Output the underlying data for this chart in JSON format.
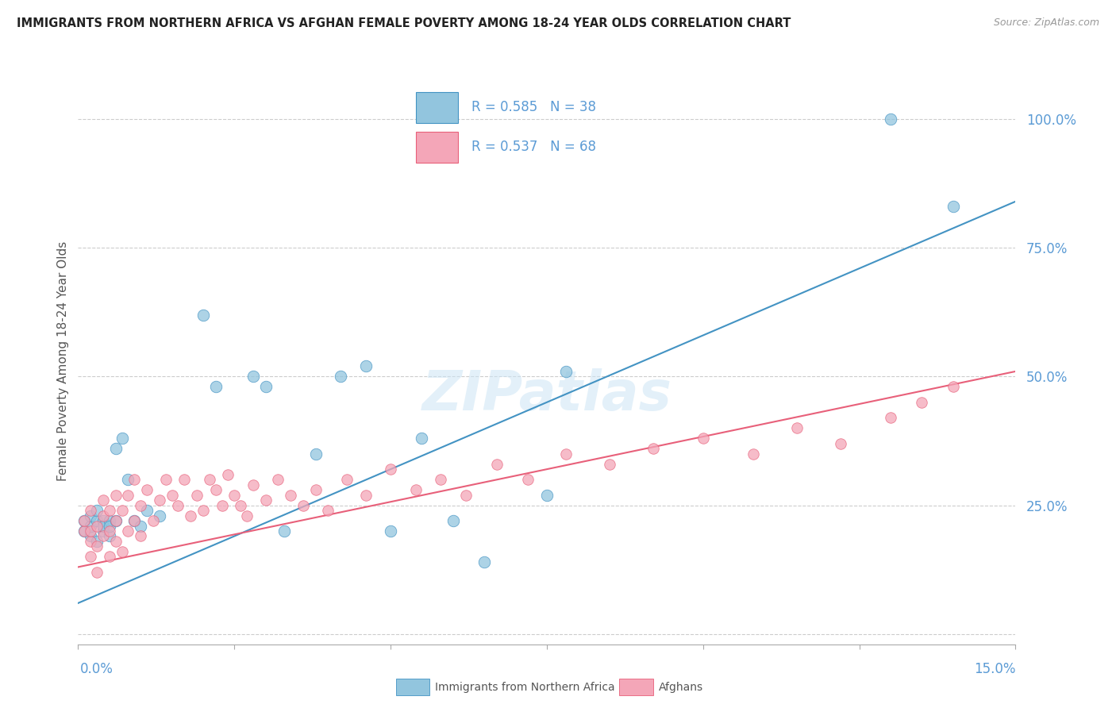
{
  "title": "IMMIGRANTS FROM NORTHERN AFRICA VS AFGHAN FEMALE POVERTY AMONG 18-24 YEAR OLDS CORRELATION CHART",
  "source": "Source: ZipAtlas.com",
  "ylabel": "Female Poverty Among 18-24 Year Olds",
  "xlim": [
    0.0,
    0.15
  ],
  "ylim": [
    -0.02,
    1.08
  ],
  "blue_R": 0.585,
  "blue_N": 38,
  "pink_R": 0.537,
  "pink_N": 68,
  "blue_color": "#92c5de",
  "pink_color": "#f4a6b8",
  "blue_line_color": "#4393c3",
  "pink_line_color": "#e8607a",
  "text_color": "#5b9bd5",
  "watermark": "ZIPatlas",
  "blue_scatter_x": [
    0.001,
    0.001,
    0.002,
    0.002,
    0.002,
    0.003,
    0.003,
    0.003,
    0.004,
    0.004,
    0.004,
    0.005,
    0.005,
    0.005,
    0.006,
    0.006,
    0.007,
    0.008,
    0.009,
    0.01,
    0.011,
    0.013,
    0.02,
    0.022,
    0.028,
    0.03,
    0.033,
    0.038,
    0.042,
    0.046,
    0.05,
    0.055,
    0.06,
    0.065,
    0.075,
    0.078,
    0.13,
    0.14
  ],
  "blue_scatter_y": [
    0.2,
    0.22,
    0.19,
    0.21,
    0.23,
    0.18,
    0.22,
    0.24,
    0.2,
    0.22,
    0.21,
    0.19,
    0.22,
    0.21,
    0.36,
    0.22,
    0.38,
    0.3,
    0.22,
    0.21,
    0.24,
    0.23,
    0.62,
    0.48,
    0.5,
    0.48,
    0.2,
    0.35,
    0.5,
    0.52,
    0.2,
    0.38,
    0.22,
    0.14,
    0.27,
    0.51,
    1.0,
    0.83
  ],
  "pink_scatter_x": [
    0.001,
    0.001,
    0.002,
    0.002,
    0.002,
    0.002,
    0.003,
    0.003,
    0.003,
    0.004,
    0.004,
    0.004,
    0.005,
    0.005,
    0.005,
    0.006,
    0.006,
    0.006,
    0.007,
    0.007,
    0.008,
    0.008,
    0.009,
    0.009,
    0.01,
    0.01,
    0.011,
    0.012,
    0.013,
    0.014,
    0.015,
    0.016,
    0.017,
    0.018,
    0.019,
    0.02,
    0.021,
    0.022,
    0.023,
    0.024,
    0.025,
    0.026,
    0.027,
    0.028,
    0.03,
    0.032,
    0.034,
    0.036,
    0.038,
    0.04,
    0.043,
    0.046,
    0.05,
    0.054,
    0.058,
    0.062,
    0.067,
    0.072,
    0.078,
    0.085,
    0.092,
    0.1,
    0.108,
    0.115,
    0.122,
    0.13,
    0.135,
    0.14
  ],
  "pink_scatter_y": [
    0.2,
    0.22,
    0.15,
    0.18,
    0.2,
    0.24,
    0.12,
    0.17,
    0.21,
    0.19,
    0.23,
    0.26,
    0.15,
    0.2,
    0.24,
    0.18,
    0.22,
    0.27,
    0.16,
    0.24,
    0.2,
    0.27,
    0.22,
    0.3,
    0.19,
    0.25,
    0.28,
    0.22,
    0.26,
    0.3,
    0.27,
    0.25,
    0.3,
    0.23,
    0.27,
    0.24,
    0.3,
    0.28,
    0.25,
    0.31,
    0.27,
    0.25,
    0.23,
    0.29,
    0.26,
    0.3,
    0.27,
    0.25,
    0.28,
    0.24,
    0.3,
    0.27,
    0.32,
    0.28,
    0.3,
    0.27,
    0.33,
    0.3,
    0.35,
    0.33,
    0.36,
    0.38,
    0.35,
    0.4,
    0.37,
    0.42,
    0.45,
    0.48
  ],
  "blue_line_x": [
    0.0,
    0.15
  ],
  "blue_line_y": [
    0.06,
    0.84
  ],
  "pink_line_x": [
    0.0,
    0.15
  ],
  "pink_line_y": [
    0.13,
    0.51
  ]
}
